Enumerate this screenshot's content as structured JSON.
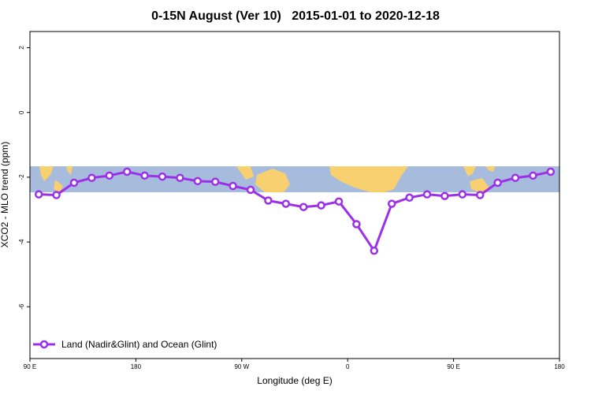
{
  "chart_data": {
    "type": "line",
    "title": "0-15N August (Ver 10)   2015-01-01 to 2020-12-18",
    "x_label": "Longitude (deg E)",
    "y_label": "XCO2 - MLO trend (ppm)",
    "x": [
      97.5,
      112.5,
      127.5,
      142.5,
      157.5,
      172.5,
      187.5,
      202.5,
      217.5,
      232.5,
      247.5,
      262.5,
      277.5,
      292.5,
      307.5,
      322.5,
      337.5,
      352.5,
      367.5,
      382.5,
      397.5,
      412.5,
      427.5,
      442.5,
      457.5,
      472.5,
      487.5,
      502.5,
      517.5,
      532.5
    ],
    "series": [
      {
        "name": "Land (Nadir&Glint) and Ocean (Glint)",
        "color": "#9b30e8",
        "values": [
          -2.53,
          -2.55,
          -2.17,
          -2.02,
          -1.95,
          -1.83,
          -1.95,
          -1.98,
          -2.02,
          -2.12,
          -2.14,
          -2.27,
          -2.39,
          -2.72,
          -2.82,
          -2.92,
          -2.87,
          -2.75,
          -3.45,
          -4.27,
          -2.82,
          -2.63,
          -2.53,
          -2.58,
          -2.53,
          -2.55,
          -2.17,
          -2.02,
          -1.95,
          -1.83
        ]
      }
    ],
    "xlim": [
      90,
      540
    ],
    "xticks": [
      {
        "value": 90,
        "label": "90 E"
      },
      180,
      {
        "value": 270,
        "label": "90 W"
      },
      {
        "value": 360,
        "label": "0"
      },
      {
        "value": 450,
        "label": "90 E"
      },
      {
        "value": 540,
        "label": "180"
      }
    ],
    "ylim": [
      -7.6,
      2.5
    ],
    "yticks": [
      -6,
      -4,
      -2,
      0,
      2
    ],
    "legend": "bottom-left"
  }
}
